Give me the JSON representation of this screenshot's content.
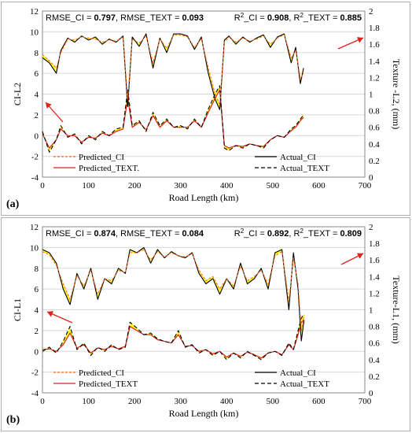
{
  "chart_data": [
    {
      "panel_label": "(a)",
      "type": "line",
      "xlabel": "Road Length (km)",
      "ylabel": "CI-L2",
      "y2label": "Texture -L2, (mm)",
      "xlim": [
        0,
        700
      ],
      "ylim": [
        -4,
        12
      ],
      "y2lim": [
        0,
        2
      ],
      "xticks": [
        "0",
        "100",
        "200",
        "300",
        "400",
        "500",
        "600",
        "700"
      ],
      "yticks": [
        "-4",
        "-2",
        "0",
        "2",
        "4",
        "6",
        "8",
        "10",
        "12"
      ],
      "y2ticks": [
        "0",
        "0.2",
        "0.4",
        "0.6",
        "0.8",
        "1",
        "1.2",
        "1.4",
        "1.6",
        "1.8",
        "2"
      ],
      "metrics": {
        "left_prefix": "RMSE_CI = ",
        "left_value1": "0.797",
        "left_mid": ", RMSE_TEXT = ",
        "left_value2": "0.093",
        "right_prefix1": "R",
        "right_sup1": "2",
        "right_mid1": "_CI = ",
        "right_value1": "0.908",
        "right_prefix2": ", R",
        "right_sup2": "2",
        "right_mid2": "_TEXT = ",
        "right_value2": "0.885"
      },
      "legend": {
        "predicted_ci": "Predicted_CI",
        "actual_ci": "Actual_CI",
        "predicted_text": "Predicted_TEXT.",
        "actual_text": "Actual_TEXT"
      },
      "grid": true,
      "series": [
        {
          "name": "Actual_CI",
          "axis": "left",
          "x": [
            0,
            15,
            30,
            40,
            55,
            70,
            85,
            100,
            115,
            130,
            145,
            160,
            175,
            185,
            195,
            210,
            225,
            240,
            255,
            270,
            285,
            300,
            315,
            330,
            345,
            360,
            375,
            385,
            395,
            405,
            420,
            435,
            450,
            465,
            480,
            495,
            510,
            525,
            540,
            550,
            560,
            567
          ],
          "y": [
            7.5,
            7.0,
            6.0,
            8.2,
            9.4,
            9.0,
            9.6,
            9.2,
            9.5,
            8.8,
            9.3,
            9.0,
            9.6,
            2.8,
            9.5,
            8.6,
            9.8,
            6.5,
            9.4,
            8.0,
            9.8,
            9.8,
            9.6,
            8.3,
            9.5,
            6.0,
            3.5,
            2.5,
            9.2,
            9.6,
            8.8,
            9.5,
            9.0,
            9.4,
            9.7,
            8.5,
            9.5,
            9.8,
            7.0,
            8.5,
            5.0,
            6.5
          ]
        },
        {
          "name": "Predicted_CI",
          "axis": "left",
          "x": [
            0,
            15,
            30,
            40,
            55,
            70,
            85,
            100,
            115,
            130,
            145,
            160,
            175,
            185,
            195,
            210,
            225,
            240,
            255,
            270,
            285,
            300,
            315,
            330,
            345,
            360,
            375,
            385,
            395,
            405,
            420,
            435,
            450,
            465,
            480,
            495,
            510,
            525,
            540,
            550,
            560,
            567
          ],
          "y": [
            7.8,
            7.2,
            6.5,
            8.0,
            9.3,
            9.2,
            9.5,
            9.4,
            9.3,
            9.0,
            9.2,
            9.1,
            9.5,
            3.5,
            9.3,
            8.9,
            9.6,
            7.0,
            9.3,
            8.4,
            9.7,
            9.7,
            9.5,
            8.5,
            9.3,
            6.5,
            4.0,
            3.0,
            9.0,
            9.5,
            9.0,
            9.4,
            9.1,
            9.3,
            9.6,
            8.8,
            9.4,
            9.7,
            7.5,
            8.2,
            5.5,
            6.0
          ]
        },
        {
          "name": "Actual_TEXT",
          "axis": "right",
          "x": [
            0,
            15,
            30,
            40,
            55,
            70,
            85,
            100,
            115,
            130,
            145,
            160,
            175,
            185,
            195,
            210,
            225,
            240,
            255,
            270,
            285,
            300,
            315,
            330,
            345,
            360,
            375,
            385,
            395,
            405,
            420,
            435,
            450,
            465,
            480,
            495,
            510,
            525,
            540,
            550,
            560,
            567
          ],
          "y": [
            0.55,
            0.3,
            0.45,
            0.62,
            0.48,
            0.52,
            0.4,
            0.5,
            0.45,
            0.55,
            0.5,
            0.58,
            0.6,
            1.05,
            0.62,
            0.68,
            0.55,
            0.78,
            0.62,
            0.7,
            0.6,
            0.62,
            0.58,
            0.7,
            0.6,
            0.82,
            1.0,
            1.1,
            0.35,
            0.32,
            0.38,
            0.35,
            0.4,
            0.38,
            0.35,
            0.45,
            0.5,
            0.48,
            0.58,
            0.62,
            0.7,
            0.75
          ]
        },
        {
          "name": "Predicted_TEXT.",
          "axis": "right",
          "x": [
            0,
            15,
            30,
            40,
            55,
            70,
            85,
            100,
            115,
            130,
            145,
            160,
            175,
            185,
            195,
            210,
            225,
            240,
            255,
            270,
            285,
            300,
            315,
            330,
            345,
            360,
            375,
            385,
            395,
            405,
            420,
            435,
            450,
            465,
            480,
            495,
            510,
            525,
            540,
            550,
            560,
            567
          ],
          "y": [
            0.52,
            0.35,
            0.45,
            0.58,
            0.5,
            0.5,
            0.42,
            0.48,
            0.47,
            0.53,
            0.5,
            0.55,
            0.58,
            0.95,
            0.6,
            0.66,
            0.57,
            0.74,
            0.6,
            0.68,
            0.6,
            0.6,
            0.6,
            0.68,
            0.6,
            0.78,
            0.95,
            1.05,
            0.38,
            0.35,
            0.38,
            0.37,
            0.4,
            0.38,
            0.37,
            0.45,
            0.5,
            0.48,
            0.56,
            0.6,
            0.68,
            0.72
          ]
        }
      ]
    },
    {
      "panel_label": "(b)",
      "type": "line",
      "xlabel": "Road Length (km)",
      "ylabel": "CI-L1",
      "y2label": "Texture-L1, (mm)",
      "xlim": [
        0,
        700
      ],
      "ylim": [
        -4,
        12
      ],
      "y2lim": [
        0,
        2
      ],
      "xticks": [
        "0",
        "100",
        "200",
        "300",
        "400",
        "500",
        "600",
        "700"
      ],
      "yticks": [
        "-4",
        "-2",
        "0",
        "2",
        "4",
        "6",
        "8",
        "10",
        "12"
      ],
      "y2ticks": [
        "0",
        "0.2",
        "0.4",
        "0.6",
        "0.8",
        "1",
        "1.2",
        "1.4",
        "1.6",
        "1.8",
        "2"
      ],
      "metrics": {
        "left_prefix": "RMSE_CI = ",
        "left_value1": "0.874",
        "left_mid": ", RMSE_TEXT = ",
        "left_value2": "0.084",
        "right_prefix1": "R",
        "right_sup1": "2",
        "right_mid1": "_CI = ",
        "right_value1": "0.892",
        "right_prefix2": ", R",
        "right_sup2": "2",
        "right_mid2": "_TEXT = ",
        "right_value2": "0.809"
      },
      "legend": {
        "predicted_ci": "Predicted_CI",
        "actual_ci": "Actual_CI",
        "predicted_text": "Predicted_TEXT",
        "actual_text": "Actual_TEXT"
      },
      "grid": true,
      "series": [
        {
          "name": "Actual_CI",
          "axis": "left",
          "x": [
            0,
            15,
            30,
            45,
            60,
            75,
            90,
            105,
            120,
            135,
            150,
            165,
            180,
            190,
            205,
            220,
            235,
            250,
            265,
            280,
            295,
            310,
            325,
            340,
            355,
            370,
            385,
            400,
            415,
            430,
            445,
            460,
            475,
            490,
            505,
            520,
            535,
            545,
            555,
            562,
            568
          ],
          "y": [
            9.8,
            9.5,
            8.5,
            6.0,
            4.5,
            7.5,
            6.0,
            8.0,
            5.0,
            7.0,
            6.5,
            8.0,
            7.5,
            9.8,
            9.5,
            10.0,
            8.5,
            9.8,
            9.0,
            9.6,
            9.2,
            9.0,
            9.5,
            7.5,
            6.5,
            7.0,
            5.5,
            7.0,
            6.0,
            8.5,
            6.5,
            7.0,
            8.0,
            6.0,
            9.5,
            9.8,
            4.0,
            9.5,
            6.0,
            1.0,
            3.0
          ]
        },
        {
          "name": "Predicted_CI",
          "axis": "left",
          "x": [
            0,
            15,
            30,
            45,
            60,
            75,
            90,
            105,
            120,
            135,
            150,
            165,
            180,
            190,
            205,
            220,
            235,
            250,
            265,
            280,
            295,
            310,
            325,
            340,
            355,
            370,
            385,
            400,
            415,
            430,
            445,
            460,
            475,
            490,
            505,
            520,
            535,
            545,
            555,
            562,
            568
          ],
          "y": [
            9.6,
            9.3,
            8.3,
            6.5,
            5.0,
            7.3,
            6.3,
            7.8,
            5.5,
            7.0,
            6.8,
            7.8,
            7.6,
            9.5,
            9.5,
            9.8,
            8.8,
            9.6,
            9.1,
            9.5,
            9.2,
            9.1,
            9.4,
            7.8,
            6.8,
            7.2,
            6.0,
            7.0,
            6.3,
            8.2,
            6.8,
            7.2,
            7.8,
            6.5,
            9.2,
            9.6,
            4.8,
            9.0,
            6.5,
            2.0,
            3.5
          ]
        },
        {
          "name": "Actual_TEXT",
          "axis": "right",
          "x": [
            0,
            15,
            30,
            45,
            60,
            75,
            90,
            105,
            120,
            135,
            150,
            165,
            180,
            190,
            205,
            220,
            235,
            250,
            265,
            280,
            295,
            310,
            325,
            340,
            355,
            370,
            385,
            400,
            415,
            430,
            445,
            460,
            475,
            490,
            505,
            520,
            535,
            545,
            555,
            562,
            568
          ],
          "y": [
            0.5,
            0.55,
            0.48,
            0.62,
            0.8,
            0.52,
            0.6,
            0.45,
            0.55,
            0.5,
            0.58,
            0.52,
            0.55,
            0.85,
            0.78,
            0.7,
            0.72,
            0.65,
            0.62,
            0.6,
            0.75,
            0.55,
            0.58,
            0.48,
            0.52,
            0.45,
            0.5,
            0.4,
            0.48,
            0.42,
            0.5,
            0.45,
            0.4,
            0.48,
            0.5,
            0.45,
            0.6,
            0.52,
            0.75,
            0.9,
            0.95
          ]
        },
        {
          "name": "Predicted_TEXT",
          "axis": "right",
          "x": [
            0,
            15,
            30,
            45,
            60,
            75,
            90,
            105,
            120,
            135,
            150,
            165,
            180,
            190,
            205,
            220,
            235,
            250,
            265,
            280,
            295,
            310,
            325,
            340,
            355,
            370,
            385,
            400,
            415,
            430,
            445,
            460,
            475,
            490,
            505,
            520,
            535,
            545,
            555,
            562,
            568
          ],
          "y": [
            0.52,
            0.53,
            0.5,
            0.58,
            0.72,
            0.54,
            0.58,
            0.48,
            0.54,
            0.52,
            0.56,
            0.53,
            0.56,
            0.8,
            0.75,
            0.7,
            0.7,
            0.64,
            0.62,
            0.6,
            0.7,
            0.56,
            0.57,
            0.5,
            0.52,
            0.47,
            0.5,
            0.43,
            0.48,
            0.44,
            0.49,
            0.46,
            0.42,
            0.48,
            0.5,
            0.46,
            0.58,
            0.52,
            0.7,
            0.85,
            0.88
          ]
        }
      ]
    }
  ],
  "colors": {
    "actual": "#000000",
    "predicted_ci": "#ff6a1a",
    "predicted_text": "#e0201a",
    "fill": "#ffff00",
    "arrow": "#e0201a",
    "grid": "#d9d9d9"
  }
}
